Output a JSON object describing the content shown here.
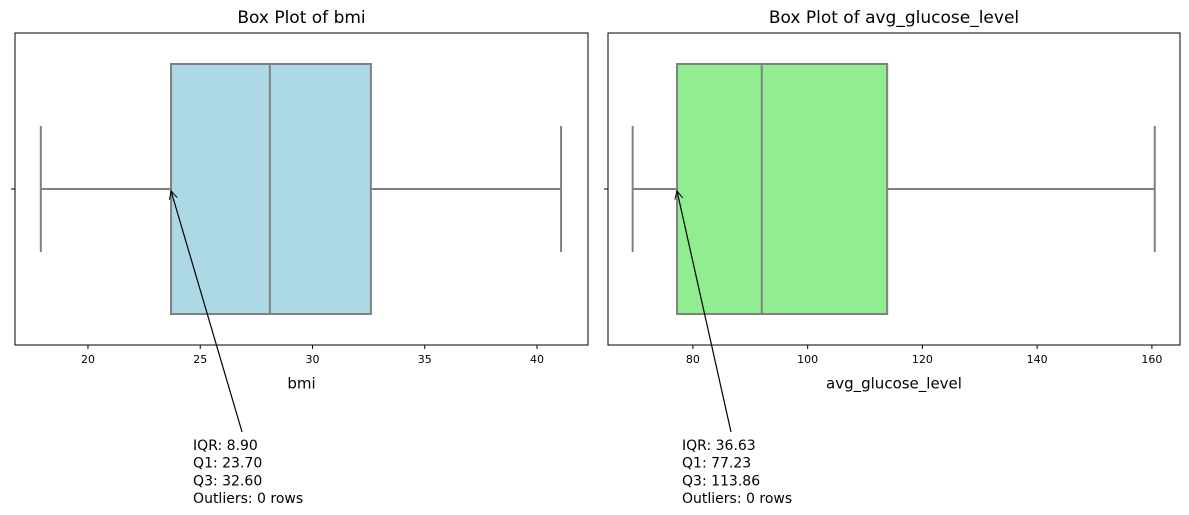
{
  "chart_data": [
    {
      "type": "box",
      "title": "Box Plot of bmi",
      "xlabel": "bmi",
      "color": "#add8e6",
      "whislo": 17.9,
      "q1": 23.7,
      "med": 28.1,
      "q3": 32.6,
      "whishi": 41.07,
      "xlim": [
        16.75,
        42.27
      ],
      "xticks": [
        20,
        25,
        30,
        35,
        40
      ],
      "annotation": [
        "IQR: 8.90",
        "Q1: 23.70",
        "Q3: 32.60",
        "Outliers: 0 rows"
      ]
    },
    {
      "type": "box",
      "title": "Box Plot of avg_glucose_level",
      "xlabel": "avg_glucose_level",
      "color": "#90ee90",
      "whislo": 69.5,
      "q1": 77.23,
      "med": 92.0,
      "q3": 113.86,
      "whishi": 160.5,
      "xlim": [
        65.2,
        164.9
      ],
      "xticks": [
        80,
        100,
        120,
        140,
        160
      ],
      "annotation": [
        "IQR: 36.63",
        "Q1: 77.23",
        "Q3: 113.86",
        "Outliers: 0 rows"
      ]
    }
  ]
}
